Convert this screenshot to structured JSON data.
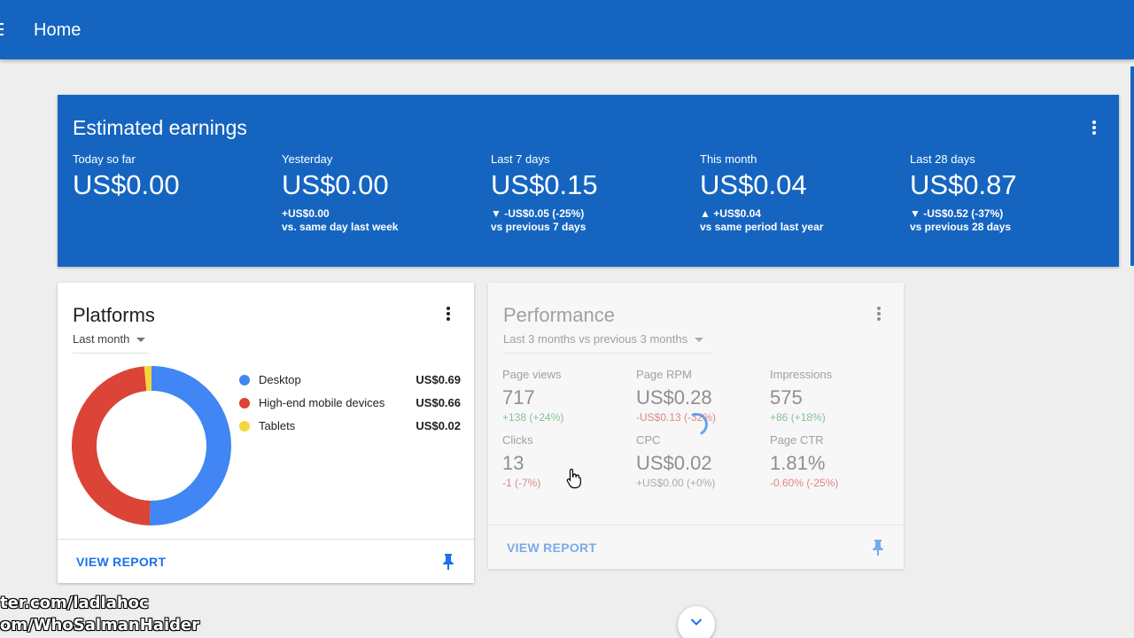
{
  "header": {
    "title": "Home"
  },
  "earnings": {
    "title": "Estimated earnings",
    "metrics": [
      {
        "label": "Today so far",
        "value": "US$0.00",
        "delta": "",
        "compare": ""
      },
      {
        "label": "Yesterday",
        "value": "US$0.00",
        "delta": "+US$0.00",
        "compare": "vs. same day last week"
      },
      {
        "label": "Last 7 days",
        "value": "US$0.15",
        "delta": "▼ -US$0.05 (-25%)",
        "compare": "vs previous 7 days"
      },
      {
        "label": "This month",
        "value": "US$0.04",
        "delta": "▲ +US$0.04",
        "compare": "vs same period last year"
      },
      {
        "label": "Last 28 days",
        "value": "US$0.87",
        "delta": "▼ -US$0.52 (-37%)",
        "compare": "vs previous 28 days"
      }
    ]
  },
  "platforms": {
    "title": "Platforms",
    "period": "Last month",
    "view_report": "VIEW REPORT",
    "legend": [
      {
        "name": "Desktop",
        "value": "US$0.69",
        "amount": 0.69,
        "color": "#4285f4"
      },
      {
        "name": "High-end mobile devices",
        "value": "US$0.66",
        "amount": 0.66,
        "color": "#db4437"
      },
      {
        "name": "Tablets",
        "value": "US$0.02",
        "amount": 0.02,
        "color": "#f4d63c"
      }
    ]
  },
  "performance": {
    "title": "Performance",
    "period": "Last 3 months vs previous 3 months",
    "view_report": "VIEW REPORT",
    "stats": [
      {
        "label": "Page views",
        "value": "717",
        "delta": "+138 (+24%)",
        "trend": "up"
      },
      {
        "label": "Page RPM",
        "value": "US$0.28",
        "delta": "-US$0.13 (-32%)",
        "trend": "down"
      },
      {
        "label": "Impressions",
        "value": "575",
        "delta": "+86 (+18%)",
        "trend": "up"
      },
      {
        "label": "Clicks",
        "value": "13",
        "delta": "-1 (-7%)",
        "trend": "down"
      },
      {
        "label": "CPC",
        "value": "US$0.02",
        "delta": "+US$0.00 (+0%)",
        "trend": "neutral"
      },
      {
        "label": "Page CTR",
        "value": "1.81%",
        "delta": "-0.60% (-25%)",
        "trend": "down"
      }
    ]
  },
  "watermarks": [
    "ter.com/ladlahoc",
    "om/WhoSalmanHaider"
  ],
  "colors": {
    "primary": "#1565c0",
    "link": "#1a73e8"
  }
}
